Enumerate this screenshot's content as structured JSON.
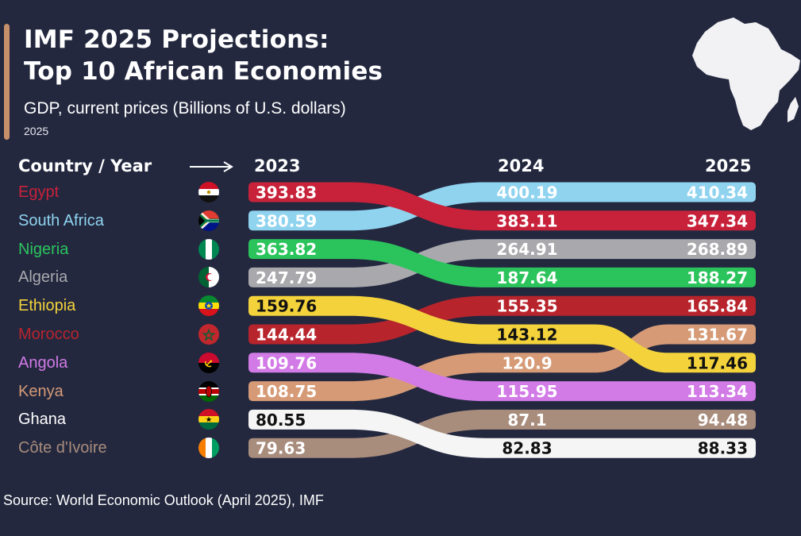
{
  "header": {
    "title_line1": "IMF 2025 Projections:",
    "title_line2": "Top 10 African Economies",
    "subtitle": "GDP, current prices (Billions of U.S. dollars)",
    "year_note": "2025",
    "column_country": "Country / Year"
  },
  "source": "Source: World Economic Outlook (April 2025), IMF",
  "chart_data": {
    "type": "bump",
    "title": "IMF 2025 Projections: Top 10 African Economies",
    "subtitle": "GDP, current prices (Billions of U.S. dollars)",
    "years": [
      "2023",
      "2024",
      "2025"
    ],
    "series": [
      {
        "name": "Egypt",
        "color": "#c8223a",
        "flag": "egypt-flag",
        "values": [
          393.83,
          383.11,
          347.34
        ],
        "labels": [
          "393.83",
          "383.11",
          "347.34"
        ]
      },
      {
        "name": "South Africa",
        "color": "#8fd3ef",
        "flag": "south-africa-flag",
        "values": [
          380.59,
          400.19,
          410.34
        ],
        "labels": [
          "380.59",
          "400.19",
          "410.34"
        ]
      },
      {
        "name": "Nigeria",
        "color": "#2bc45c",
        "flag": "nigeria-flag",
        "values": [
          363.82,
          187.64,
          188.27
        ],
        "labels": [
          "363.82",
          "187.64",
          "188.27"
        ]
      },
      {
        "name": "Algeria",
        "color": "#a9a9ad",
        "flag": "algeria-flag",
        "values": [
          247.79,
          264.91,
          268.89
        ],
        "labels": [
          "247.79",
          "264.91",
          "268.89"
        ]
      },
      {
        "name": "Ethiopia",
        "color": "#f3d23c",
        "flag": "ethiopia-flag",
        "values": [
          159.76,
          143.12,
          117.46
        ],
        "labels": [
          "159.76",
          "143.12",
          "117.46"
        ]
      },
      {
        "name": "Morocco",
        "color": "#b8242c",
        "flag": "morocco-flag",
        "values": [
          144.44,
          155.35,
          165.84
        ],
        "labels": [
          "144.44",
          "155.35",
          "165.84"
        ]
      },
      {
        "name": "Angola",
        "color": "#d27ae6",
        "flag": "angola-flag",
        "values": [
          109.76,
          115.95,
          113.34
        ],
        "labels": [
          "109.76",
          "115.95",
          "113.34"
        ]
      },
      {
        "name": "Kenya",
        "color": "#d69a76",
        "flag": "kenya-flag",
        "values": [
          108.75,
          120.9,
          131.67
        ],
        "labels": [
          "108.75",
          "120.9",
          "131.67"
        ]
      },
      {
        "name": "Ghana",
        "color": "#f5f5f5",
        "flag": "ghana-flag",
        "values": [
          80.55,
          82.83,
          88.33
        ],
        "labels": [
          "80.55",
          "82.83",
          "88.33"
        ]
      },
      {
        "name": "Côte d'Ivoire",
        "color": "#a88c7c",
        "flag": "cote-divoire-flag",
        "values": [
          79.63,
          87.1,
          94.48
        ],
        "labels": [
          "79.63",
          "87.1",
          "94.48"
        ]
      }
    ]
  }
}
